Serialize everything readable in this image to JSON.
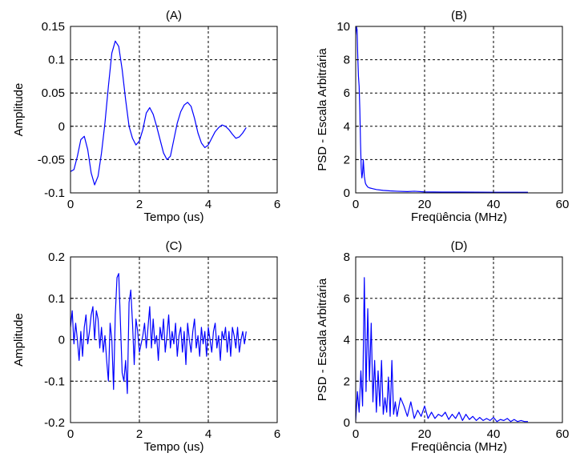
{
  "figure": {
    "background": "#ffffff",
    "line_color": "#0000ff",
    "grid_color": "#000000"
  },
  "chart_data": [
    {
      "id": "A",
      "type": "line",
      "title": "(A)",
      "xlabel": "Tempo (us)",
      "ylabel": "Amplitude",
      "xlim": [
        0,
        6
      ],
      "ylim": [
        -0.1,
        0.15
      ],
      "xticks": [
        0,
        2,
        4,
        6
      ],
      "xtick_labels": [
        "0",
        "2",
        "4",
        "6"
      ],
      "yticks": [
        -0.1,
        -0.05,
        0,
        0.05,
        0.1,
        0.15
      ],
      "ytick_labels": [
        "-0.1",
        "-0.05",
        "0",
        "0.05",
        "0.1",
        "0.15"
      ],
      "grid": true,
      "series": [
        {
          "x": [
            0.0,
            0.1,
            0.2,
            0.3,
            0.4,
            0.5,
            0.6,
            0.7,
            0.8,
            0.9,
            1.0,
            1.1,
            1.2,
            1.3,
            1.4,
            1.5,
            1.6,
            1.7,
            1.8,
            1.9,
            2.0,
            2.1,
            2.2,
            2.3,
            2.4,
            2.5,
            2.6,
            2.7,
            2.8,
            2.9,
            3.0,
            3.1,
            3.2,
            3.3,
            3.4,
            3.5,
            3.6,
            3.7,
            3.8,
            3.9,
            4.0,
            4.1,
            4.2,
            4.3,
            4.4,
            4.5,
            4.6,
            4.7,
            4.8,
            4.9,
            5.0,
            5.1
          ],
          "y": [
            -0.068,
            -0.065,
            -0.045,
            -0.02,
            -0.015,
            -0.035,
            -0.07,
            -0.088,
            -0.075,
            -0.04,
            0.005,
            0.06,
            0.11,
            0.128,
            0.12,
            0.085,
            0.04,
            0.0,
            -0.018,
            -0.028,
            -0.022,
            -0.005,
            0.02,
            0.028,
            0.018,
            0.0,
            -0.02,
            -0.04,
            -0.05,
            -0.045,
            -0.02,
            0.005,
            0.022,
            0.032,
            0.036,
            0.03,
            0.012,
            -0.01,
            -0.025,
            -0.032,
            -0.028,
            -0.018,
            -0.008,
            -0.002,
            0.002,
            0.0,
            -0.005,
            -0.012,
            -0.018,
            -0.016,
            -0.01,
            -0.002
          ]
        }
      ]
    },
    {
      "id": "B",
      "type": "line",
      "title": "(B)",
      "xlabel": "Freqüência (MHz)",
      "ylabel": "PSD - Escala Arbitrária",
      "xlim": [
        0,
        60
      ],
      "ylim": [
        0,
        10
      ],
      "xticks": [
        0,
        20,
        40,
        60
      ],
      "xtick_labels": [
        "0",
        "20",
        "40",
        "60"
      ],
      "yticks": [
        0,
        2,
        4,
        6,
        8,
        10
      ],
      "ytick_labels": [
        "0",
        "2",
        "4",
        "6",
        "8",
        "10"
      ],
      "grid": true,
      "series": [
        {
          "x": [
            0.0,
            0.2,
            0.4,
            0.6,
            0.8,
            1.0,
            1.2,
            1.4,
            1.6,
            1.8,
            2.0,
            2.2,
            2.5,
            2.8,
            3.0,
            3.5,
            4.0,
            5.0,
            6.0,
            8.0,
            10.0,
            12.0,
            15.0,
            17.0,
            20.0,
            25.0,
            30.0,
            40.0,
            50.0
          ],
          "y": [
            9.5,
            10.0,
            9.8,
            8.2,
            7.0,
            6.4,
            5.0,
            3.0,
            1.5,
            0.9,
            1.2,
            2.0,
            1.0,
            0.6,
            0.5,
            0.35,
            0.3,
            0.25,
            0.2,
            0.15,
            0.12,
            0.1,
            0.08,
            0.1,
            0.06,
            0.05,
            0.05,
            0.04,
            0.04
          ]
        }
      ]
    },
    {
      "id": "C",
      "type": "line",
      "title": "(C)",
      "xlabel": "Tempo (us)",
      "ylabel": "Amplitude",
      "xlim": [
        0,
        6
      ],
      "ylim": [
        -0.2,
        0.2
      ],
      "xticks": [
        0,
        2,
        4,
        6
      ],
      "xtick_labels": [
        "0",
        "2",
        "4",
        "6"
      ],
      "yticks": [
        -0.2,
        -0.1,
        0,
        0.1,
        0.2
      ],
      "ytick_labels": [
        "-0.2",
        "-0.1",
        "0",
        "0.1",
        "0.2"
      ],
      "grid": true,
      "series": [
        {
          "x": [
            0.0,
            0.05,
            0.1,
            0.15,
            0.2,
            0.25,
            0.3,
            0.35,
            0.4,
            0.45,
            0.5,
            0.55,
            0.6,
            0.65,
            0.7,
            0.75,
            0.8,
            0.85,
            0.9,
            0.95,
            1.0,
            1.05,
            1.1,
            1.15,
            1.2,
            1.25,
            1.3,
            1.35,
            1.4,
            1.45,
            1.5,
            1.55,
            1.6,
            1.65,
            1.7,
            1.75,
            1.8,
            1.85,
            1.9,
            1.95,
            2.0,
            2.05,
            2.1,
            2.15,
            2.2,
            2.25,
            2.3,
            2.35,
            2.4,
            2.45,
            2.5,
            2.55,
            2.6,
            2.65,
            2.7,
            2.75,
            2.8,
            2.85,
            2.9,
            2.95,
            3.0,
            3.05,
            3.1,
            3.15,
            3.2,
            3.25,
            3.3,
            3.35,
            3.4,
            3.45,
            3.5,
            3.55,
            3.6,
            3.65,
            3.7,
            3.75,
            3.8,
            3.85,
            3.9,
            3.95,
            4.0,
            4.05,
            4.1,
            4.15,
            4.2,
            4.25,
            4.3,
            4.35,
            4.4,
            4.45,
            4.5,
            4.55,
            4.6,
            4.65,
            4.7,
            4.75,
            4.8,
            4.85,
            4.9,
            4.95,
            5.0,
            5.05,
            5.1
          ],
          "y": [
            0.03,
            0.07,
            -0.01,
            0.04,
            0.0,
            -0.05,
            0.02,
            -0.04,
            0.03,
            0.06,
            -0.01,
            0.02,
            0.06,
            0.08,
            0.0,
            0.07,
            0.05,
            -0.02,
            0.03,
            -0.03,
            0.01,
            -0.05,
            -0.1,
            0.04,
            0.0,
            -0.12,
            0.06,
            0.15,
            0.16,
            0.04,
            -0.08,
            -0.1,
            -0.05,
            -0.13,
            0.09,
            0.12,
            0.04,
            -0.06,
            0.05,
            0.02,
            -0.03,
            -0.01,
            0.01,
            0.04,
            -0.02,
            0.03,
            0.08,
            -0.02,
            0.05,
            -0.01,
            0.01,
            -0.05,
            0.03,
            0.0,
            0.05,
            -0.03,
            0.01,
            0.06,
            -0.02,
            0.02,
            -0.01,
            0.04,
            -0.04,
            0.01,
            0.03,
            -0.03,
            0.02,
            -0.06,
            0.04,
            0.0,
            -0.03,
            0.02,
            0.05,
            -0.02,
            0.01,
            -0.04,
            0.03,
            -0.01,
            0.02,
            -0.04,
            0.03,
            0.0,
            -0.03,
            0.02,
            0.04,
            -0.02,
            0.01,
            -0.05,
            0.02,
            0.0,
            0.03,
            -0.03,
            0.02,
            -0.04,
            0.03,
            0.01,
            -0.02,
            0.03,
            -0.03,
            0.0,
            0.02,
            -0.01,
            0.02
          ]
        }
      ]
    },
    {
      "id": "D",
      "type": "line",
      "title": "(D)",
      "xlabel": "Freqüência (MHz)",
      "ylabel": "PSD - Escala Arbitrária",
      "xlim": [
        0,
        60
      ],
      "ylim": [
        0,
        8
      ],
      "xticks": [
        0,
        20,
        40,
        60
      ],
      "xtick_labels": [
        "0",
        "20",
        "40",
        "60"
      ],
      "yticks": [
        0,
        2,
        4,
        6,
        8
      ],
      "ytick_labels": [
        "0",
        "2",
        "4",
        "6",
        "8"
      ],
      "grid": true,
      "series": [
        {
          "x": [
            0.0,
            0.5,
            1.0,
            1.5,
            2.0,
            2.5,
            3.0,
            3.5,
            4.0,
            4.5,
            5.0,
            5.5,
            6.0,
            6.5,
            7.0,
            7.5,
            8.0,
            8.5,
            9.0,
            9.5,
            10.0,
            10.5,
            11.0,
            11.5,
            12.0,
            13.0,
            14.0,
            15.0,
            16.0,
            17.0,
            18.0,
            19.0,
            20.0,
            21.0,
            22.0,
            23.0,
            24.0,
            25.0,
            26.0,
            27.0,
            28.0,
            29.0,
            30.0,
            31.0,
            32.0,
            33.0,
            34.0,
            35.0,
            36.0,
            37.0,
            38.0,
            39.0,
            40.0,
            41.0,
            42.0,
            43.0,
            44.0,
            45.0,
            46.0,
            47.0,
            48.0,
            49.0,
            50.0
          ],
          "y": [
            0.1,
            1.5,
            0.5,
            2.5,
            0.8,
            7.0,
            1.5,
            5.5,
            2.0,
            4.8,
            1.0,
            3.0,
            0.5,
            2.5,
            0.8,
            3.0,
            0.4,
            1.2,
            0.5,
            2.2,
            0.3,
            3.0,
            0.4,
            1.0,
            0.3,
            1.2,
            0.8,
            0.3,
            1.0,
            0.2,
            0.6,
            0.3,
            0.8,
            0.2,
            0.5,
            0.2,
            0.4,
            0.3,
            0.5,
            0.15,
            0.4,
            0.2,
            0.5,
            0.1,
            0.4,
            0.15,
            0.3,
            0.1,
            0.25,
            0.1,
            0.2,
            0.1,
            0.25,
            0.05,
            0.15,
            0.1,
            0.2,
            0.05,
            0.15,
            0.05,
            0.1,
            0.05,
            0.05
          ]
        }
      ]
    }
  ]
}
